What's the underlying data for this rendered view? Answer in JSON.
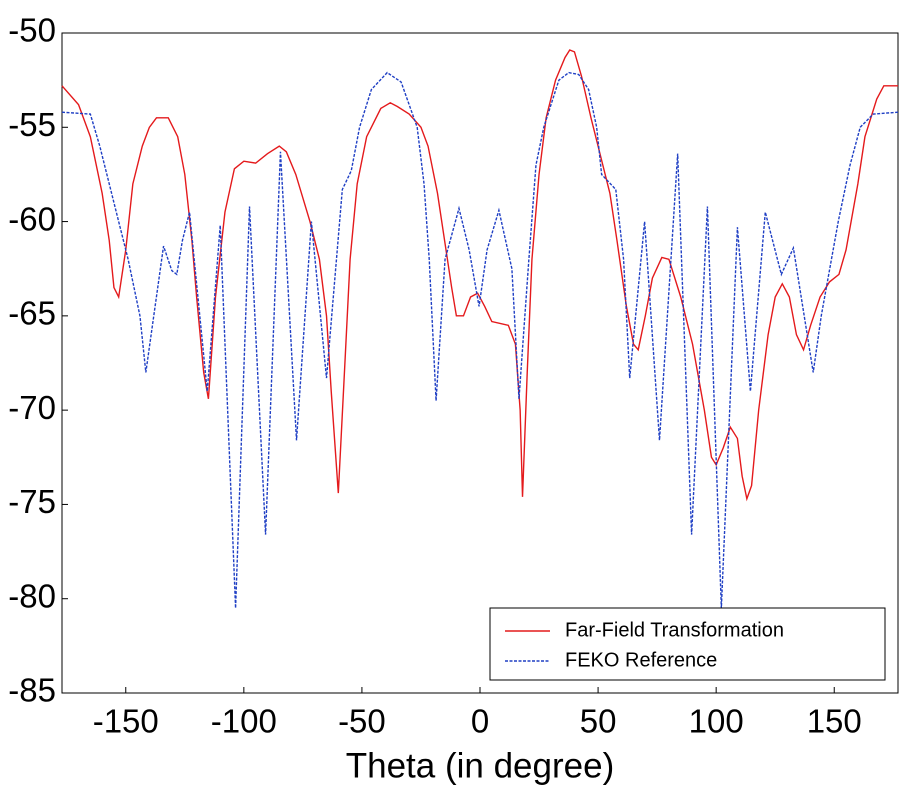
{
  "chart_data": {
    "type": "line",
    "xlabel": "Theta (in degree)",
    "xlim": [
      -177,
      177
    ],
    "ylim": [
      -85,
      -50
    ],
    "xticks": [
      -150,
      -100,
      -50,
      0,
      50,
      100,
      150
    ],
    "yticks": [
      -85,
      -80,
      -75,
      -70,
      -65,
      -60,
      -55,
      -50
    ],
    "grid": false,
    "legend": "lower right",
    "series": [
      {
        "name": "Far-Field Transformation",
        "color": "#e41a1c",
        "dash": "solid",
        "x": [
          -177,
          -170,
          -165,
          -160,
          -157,
          -155,
          -153,
          -150,
          -147,
          -143,
          -140,
          -137,
          -132,
          -128,
          -125,
          -122,
          -120,
          -117,
          -115,
          -112,
          -108,
          -104,
          -100,
          -95,
          -90,
          -85,
          -82,
          -78,
          -72,
          -68,
          -65,
          -63,
          -60,
          -57,
          -55,
          -52,
          -48,
          -42,
          -38,
          -35,
          -30,
          -25,
          -22,
          -18,
          -15,
          -12,
          -10,
          -7,
          -4,
          -1,
          2,
          5,
          12,
          15,
          17,
          18,
          20,
          22,
          25,
          28,
          32,
          36,
          38,
          40,
          43,
          47,
          52,
          55,
          58,
          62,
          65,
          67,
          70,
          73,
          77,
          80,
          85,
          90,
          95,
          98,
          100,
          103,
          106,
          109,
          111,
          113,
          115,
          118,
          122,
          125,
          128,
          131,
          134,
          137,
          140,
          144,
          148,
          152,
          155,
          160,
          163,
          168,
          171,
          177
        ],
        "values": [
          -52.8,
          -53.8,
          -55.5,
          -58.5,
          -61,
          -63.5,
          -64,
          -61.5,
          -58,
          -56,
          -55,
          -54.5,
          -54.5,
          -55.5,
          -57.5,
          -61,
          -64,
          -68,
          -69.4,
          -64,
          -59.5,
          -57.2,
          -56.8,
          -56.9,
          -56.4,
          -56,
          -56.3,
          -57.5,
          -60,
          -62,
          -65,
          -69,
          -74.4,
          -67,
          -62,
          -58,
          -55.5,
          -54,
          -53.7,
          -53.9,
          -54.3,
          -55,
          -56,
          -58.5,
          -61,
          -63.5,
          -65,
          -65,
          -64,
          -63.8,
          -64.5,
          -65.3,
          -65.5,
          -66.5,
          -70,
          -74.6,
          -68,
          -62,
          -57.5,
          -54.5,
          -52.5,
          -51.3,
          -50.9,
          -51,
          -52.3,
          -54.5,
          -57,
          -58.5,
          -61,
          -64.5,
          -66.5,
          -66.8,
          -65,
          -63,
          -61.9,
          -62,
          -64,
          -66.5,
          -70,
          -72.5,
          -72.9,
          -72,
          -70.9,
          -71.5,
          -73.5,
          -74.7,
          -74,
          -70,
          -66,
          -64,
          -63.3,
          -64,
          -66,
          -66.8,
          -65.5,
          -64,
          -63.2,
          -62.8,
          -61.5,
          -58,
          -55.5,
          -53.5,
          -52.8,
          -52.8
        ]
      },
      {
        "name": "FEKO Reference",
        "color": "#1f3fc4",
        "dash": "dashed",
        "x": [
          -177,
          -165,
          -161,
          -155,
          -149,
          -144,
          -141.5,
          -134,
          -130.5,
          -128.4,
          -126,
          -123,
          -115.5,
          -110,
          -103.5,
          -97.6,
          -90.8,
          -84.5,
          -77.7,
          -71.4,
          -65,
          -58.3,
          -54.5,
          -51,
          -46,
          -39.3,
          -33.4,
          -26.6,
          -23.7,
          -21.5,
          -18.6,
          -14.8,
          -8.9,
          -4.6,
          -0.4,
          3,
          8,
          13.5,
          16.5,
          20.7,
          23.7,
          27,
          33.4,
          37.6,
          41.8,
          46,
          49.4,
          51.5,
          57.5,
          60.8,
          63.4,
          69.7,
          76,
          83.7,
          89.6,
          96.3,
          102.2,
          109,
          114.5,
          120.8,
          127.6,
          132.7,
          141.1,
          144.5,
          151.7,
          156.7,
          161,
          166.5,
          177
        ],
        "values": [
          -54.2,
          -54.3,
          -56,
          -59,
          -62,
          -65,
          -68,
          -61.3,
          -62.6,
          -62.8,
          -61,
          -59.5,
          -69,
          -60.2,
          -80.5,
          -59.2,
          -76.6,
          -56.3,
          -71.6,
          -60,
          -68.3,
          -58.3,
          -57.3,
          -55,
          -53,
          -52.1,
          -52.6,
          -55,
          -58,
          -62,
          -69.5,
          -62,
          -59.3,
          -61.5,
          -64.5,
          -61.5,
          -59.4,
          -62.5,
          -69.4,
          -62,
          -57,
          -55,
          -52.5,
          -52.1,
          -52.2,
          -53,
          -55,
          -57.5,
          -58.3,
          -62,
          -68.3,
          -60,
          -71.6,
          -56.4,
          -76.6,
          -59.2,
          -80.5,
          -60.3,
          -69,
          -59.5,
          -62.8,
          -61.4,
          -68,
          -65,
          -60,
          -57,
          -55,
          -54.3,
          -54.2
        ]
      }
    ]
  }
}
